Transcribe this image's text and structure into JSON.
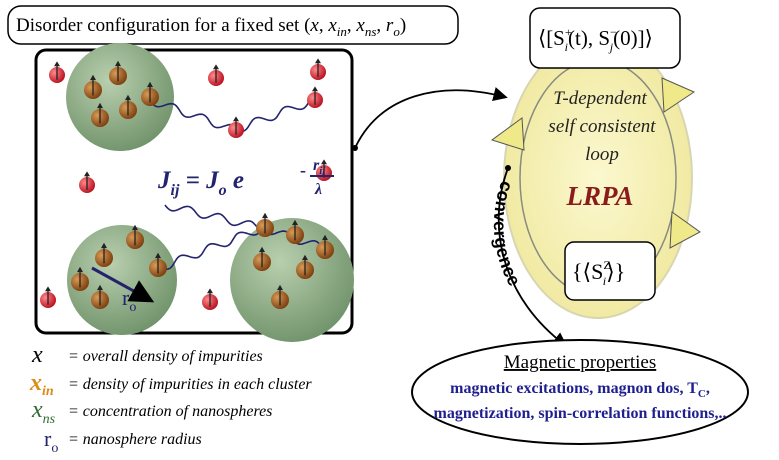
{
  "header": {
    "title": [
      "Disorder configuration for a fixed set (",
      "x",
      ", ",
      "x",
      "in",
      ", ",
      "x",
      "ns",
      ", ",
      "r",
      "o",
      ")"
    ]
  },
  "formula": {
    "lhs": "J",
    "lhs_sub": "ij",
    "eq": " = ",
    "rhs": "J",
    "rhs_sub": "o",
    "base": " e",
    "sign": "-",
    "num": "r",
    "num_sub": "ij",
    "den": "λ"
  },
  "radius_label": {
    "sym": "r",
    "sub": "o"
  },
  "legend": [
    {
      "sym": "x",
      "desc": "= overall density of impurities"
    },
    {
      "sym": "x",
      "sub": "in",
      "desc": "= density of impurities in each cluster"
    },
    {
      "sym": "x",
      "sub": "ns",
      "desc": "= concentration of nanospheres"
    },
    {
      "sym": "r",
      "sub": "o",
      "desc": "= nanosphere radius"
    }
  ],
  "loop": {
    "correlator": [
      "⟨[S",
      "+",
      "i",
      "(t), S",
      "−",
      "j",
      "(0)]⟩"
    ],
    "lines": [
      "T-dependent",
      "self consistent",
      "loop"
    ],
    "method": "LRPA",
    "magnetization": [
      "{⟨S",
      "Z",
      "i",
      "⟩}"
    ],
    "convergence": "convergence"
  },
  "output": {
    "title": "Magnetic properties",
    "line1": [
      "magnetic excitations, magnon dos, T",
      "C",
      ","
    ],
    "line2": "magnetization, spin-correlation functions,.."
  }
}
